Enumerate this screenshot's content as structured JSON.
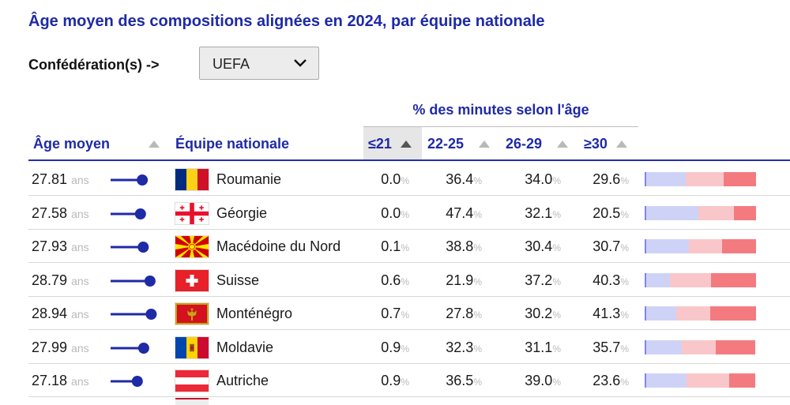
{
  "title": "Âge moyen des compositions alignées en 2024, par équipe nationale",
  "filter": {
    "label": "Confédération(s) ->",
    "selected": "UEFA"
  },
  "table": {
    "group_header": "% des minutes selon l'âge",
    "columns": {
      "age": "Âge moyen",
      "team": "Équipe nationale",
      "u21": "≤21",
      "a22_25": "22-25",
      "a26_29": "26-29",
      "o30": "≥30"
    },
    "age_unit": "ans",
    "pct_unit": "%",
    "colors": {
      "accent": "#1f2aa6",
      "u21": "#7f86e8",
      "a22_25": "#cfd2f7",
      "a26_29": "#f9c7c9",
      "o30": "#f37b80"
    },
    "rows": [
      {
        "age": "27.81",
        "team": "Roumanie",
        "flag": "flag-romania",
        "u21": "0.0",
        "a22_25": "36.4",
        "a26_29": "34.0",
        "o30": "29.6"
      },
      {
        "age": "27.58",
        "team": "Géorgie",
        "flag": "flag-georgia",
        "u21": "0.0",
        "a22_25": "47.4",
        "a26_29": "32.1",
        "o30": "20.5"
      },
      {
        "age": "27.93",
        "team": "Macédoine du Nord",
        "flag": "flag-north-macedonia",
        "u21": "0.1",
        "a22_25": "38.8",
        "a26_29": "30.4",
        "o30": "30.7"
      },
      {
        "age": "28.79",
        "team": "Suisse",
        "flag": "flag-switzerland",
        "u21": "0.6",
        "a22_25": "21.9",
        "a26_29": "37.2",
        "o30": "40.3"
      },
      {
        "age": "28.94",
        "team": "Monténégro",
        "flag": "flag-montenegro",
        "u21": "0.7",
        "a22_25": "27.8",
        "a26_29": "30.2",
        "o30": "41.3"
      },
      {
        "age": "27.99",
        "team": "Moldavie",
        "flag": "flag-moldova",
        "u21": "0.9",
        "a22_25": "32.3",
        "a26_29": "31.1",
        "o30": "35.7"
      },
      {
        "age": "27.18",
        "team": "Autriche",
        "flag": "flag-austria",
        "u21": "0.9",
        "a22_25": "36.5",
        "a26_29": "39.0",
        "o30": "23.6"
      }
    ]
  }
}
